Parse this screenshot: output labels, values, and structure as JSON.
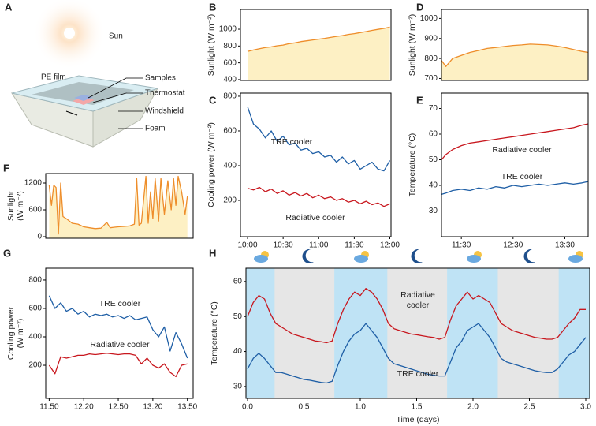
{
  "diagram": {
    "label": "A",
    "texts": [
      "Sun",
      "PE film",
      "Samples",
      "Thermostat",
      "Windshield",
      "Foam"
    ]
  },
  "chart_data": [
    {
      "type": "line",
      "label": "B",
      "ylabel": "Sunlight (W m⁻²)",
      "xlim": [
        -6,
        121
      ],
      "ylim": [
        390,
        1235
      ],
      "yticks": [
        400,
        600,
        800,
        1000
      ],
      "fill": "#fdf0c4",
      "x": [
        0,
        5,
        10,
        15,
        20,
        25,
        30,
        35,
        40,
        45,
        50,
        55,
        60,
        65,
        70,
        75,
        80,
        85,
        90,
        95,
        100,
        105,
        110,
        115,
        120
      ],
      "series": [
        {
          "color": "#ee8d2a",
          "values": [
            735,
            752,
            768,
            782,
            790,
            803,
            812,
            828,
            838,
            853,
            862,
            873,
            882,
            891,
            903,
            915,
            924,
            938,
            948,
            960,
            972,
            986,
            998,
            1010,
            1025
          ]
        }
      ]
    },
    {
      "type": "line",
      "label": "C",
      "ylabel": "Cooling power (W m⁻²)",
      "xlim": [
        -6,
        121
      ],
      "ylim": [
        -9,
        818
      ],
      "yticks": [
        200,
        400,
        600,
        800
      ],
      "xticks": [
        {
          "value": 0,
          "label": "10:00"
        },
        {
          "value": 30,
          "label": "10:30"
        },
        {
          "value": 60,
          "label": "11:00"
        },
        {
          "value": 90,
          "label": "11:30"
        },
        {
          "value": 120,
          "label": "12:00"
        }
      ],
      "x": [
        0,
        5,
        10,
        15,
        20,
        25,
        30,
        35,
        40,
        45,
        50,
        55,
        60,
        65,
        70,
        75,
        80,
        85,
        90,
        95,
        100,
        105,
        110,
        115,
        120
      ],
      "series": [
        {
          "name": "TRE cooler",
          "color": "#1f5fa6",
          "values": [
            740,
            640,
            610,
            560,
            600,
            540,
            570,
            520,
            530,
            490,
            500,
            470,
            480,
            450,
            460,
            420,
            450,
            410,
            430,
            380,
            400,
            420,
            380,
            370,
            430
          ]
        },
        {
          "name": "Radiative cooler",
          "color": "#c8171e",
          "values": [
            270,
            260,
            275,
            250,
            265,
            240,
            255,
            230,
            245,
            225,
            240,
            215,
            230,
            210,
            220,
            200,
            210,
            190,
            200,
            180,
            195,
            175,
            185,
            165,
            180
          ]
        }
      ]
    },
    {
      "type": "line",
      "label": "D",
      "ylabel": "Sunlight (W m⁻²)",
      "xlim": [
        7,
        177
      ],
      "ylim": [
        690,
        1045
      ],
      "yticks": [
        700,
        800,
        900,
        1000
      ],
      "fill": "#fdf0c4",
      "x": [
        7,
        12,
        20,
        30,
        40,
        50,
        60,
        70,
        80,
        90,
        100,
        110,
        120,
        130,
        140,
        150,
        160,
        170,
        177
      ],
      "series": [
        {
          "color": "#ee8d2a",
          "values": [
            790,
            760,
            800,
            815,
            830,
            840,
            850,
            855,
            860,
            865,
            868,
            872,
            870,
            868,
            862,
            855,
            845,
            835,
            830
          ]
        }
      ]
    },
    {
      "type": "line",
      "label": "E",
      "ylabel": "Temperature (°C)",
      "xlim": [
        7,
        177
      ],
      "ylim": [
        20,
        76
      ],
      "yticks": [
        30,
        40,
        50,
        60,
        70
      ],
      "xticks": [
        {
          "value": 30,
          "label": "11:30"
        },
        {
          "value": 90,
          "label": "12:30"
        },
        {
          "value": 150,
          "label": "13:30"
        }
      ],
      "x": [
        7,
        12,
        20,
        30,
        40,
        50,
        60,
        70,
        80,
        90,
        100,
        110,
        120,
        130,
        140,
        150,
        160,
        170,
        177
      ],
      "series": [
        {
          "name": "Radiative cooler",
          "color": "#c8171e",
          "values": [
            50,
            52,
            54,
            55.5,
            56.5,
            57,
            57.5,
            58,
            58.5,
            59,
            59.5,
            60,
            60.5,
            61,
            61.5,
            62,
            62.5,
            63.5,
            64
          ]
        },
        {
          "name": "TRE cooler",
          "color": "#1f5fa6",
          "values": [
            36.5,
            37,
            38,
            38.5,
            38,
            39,
            38.5,
            39.5,
            39,
            40,
            39.5,
            40,
            40.5,
            40,
            40.5,
            41,
            40.5,
            41,
            41.5
          ]
        }
      ]
    },
    {
      "type": "line",
      "label": "F",
      "ylabel": [
        "Sunlight",
        "(W m⁻²)"
      ],
      "xlim": [
        -3,
        125
      ],
      "ylim": [
        -35,
        1412
      ],
      "yticks": [
        0,
        600,
        1200
      ],
      "fill": "#fdf0c4",
      "x": [
        0,
        2,
        4,
        6,
        8,
        10,
        12,
        15,
        20,
        25,
        30,
        35,
        40,
        45,
        50,
        53,
        56,
        60,
        65,
        70,
        74,
        76,
        78,
        80,
        84,
        86,
        88,
        90,
        92,
        95,
        97,
        100,
        103,
        106,
        108,
        110,
        112,
        115,
        118,
        120
      ],
      "series": [
        {
          "color": "#ee8d2a",
          "values": [
            1150,
            700,
            1150,
            1100,
            60,
            1200,
            450,
            400,
            300,
            280,
            220,
            200,
            180,
            190,
            320,
            200,
            210,
            220,
            230,
            240,
            280,
            1300,
            260,
            300,
            1350,
            300,
            1000,
            400,
            1300,
            350,
            1300,
            500,
            1250,
            600,
            1300,
            700,
            1350,
            1000,
            500,
            900
          ]
        }
      ]
    },
    {
      "type": "line",
      "label": "G",
      "ylabel": [
        "Cooling power",
        "(W m⁻²)"
      ],
      "xlim": [
        -3,
        125
      ],
      "ylim": [
        -33,
        883
      ],
      "yticks": [
        200,
        400,
        600,
        800
      ],
      "xticks": [
        {
          "value": 0,
          "label": "11:50"
        },
        {
          "value": 30,
          "label": "12:20"
        },
        {
          "value": 60,
          "label": "12:50"
        },
        {
          "value": 90,
          "label": "13:20"
        },
        {
          "value": 120,
          "label": "13:50"
        }
      ],
      "x": [
        0,
        5,
        10,
        15,
        20,
        25,
        30,
        35,
        40,
        45,
        50,
        55,
        60,
        65,
        70,
        75,
        80,
        85,
        90,
        95,
        100,
        105,
        110,
        115,
        120
      ],
      "series": [
        {
          "name": "TRE cooler",
          "color": "#1f5fa6",
          "values": [
            690,
            600,
            640,
            580,
            600,
            560,
            580,
            540,
            560,
            550,
            560,
            540,
            550,
            530,
            550,
            520,
            530,
            540,
            450,
            400,
            470,
            300,
            430,
            350,
            250
          ]
        },
        {
          "name": "Radiative cooler",
          "color": "#c8171e",
          "values": [
            200,
            140,
            260,
            250,
            260,
            270,
            270,
            280,
            275,
            280,
            285,
            280,
            275,
            280,
            280,
            270,
            210,
            250,
            200,
            180,
            210,
            150,
            120,
            200,
            210
          ]
        }
      ]
    },
    {
      "type": "line",
      "label": "H",
      "ylabel": "Temperature (°C)",
      "xlabel": "Time (days)",
      "xlim": [
        -0.014,
        3.035
      ],
      "ylim": [
        26.6,
        63.8
      ],
      "yticks": [
        30,
        40,
        50,
        60
      ],
      "xticks": [
        {
          "value": 0,
          "label": "0.0"
        },
        {
          "value": 0.5,
          "label": "0.5"
        },
        {
          "value": 1,
          "label": "1.0"
        },
        {
          "value": 1.5,
          "label": "1.5"
        },
        {
          "value": 2,
          "label": "2.0"
        },
        {
          "value": 2.5,
          "label": "2.5"
        },
        {
          "value": 3,
          "label": "3.0"
        }
      ],
      "background": "#e6e6e6",
      "span_color": "#bfe3f5",
      "spans": [
        [
          -0.014,
          0.24
        ],
        [
          0.77,
          1.24
        ],
        [
          1.77,
          2.22
        ],
        [
          2.76,
          3.035
        ]
      ],
      "x": [
        0,
        0.05,
        0.1,
        0.15,
        0.2,
        0.25,
        0.3,
        0.35,
        0.4,
        0.45,
        0.5,
        0.55,
        0.6,
        0.65,
        0.7,
        0.75,
        0.8,
        0.85,
        0.9,
        0.95,
        1,
        1.05,
        1.1,
        1.15,
        1.2,
        1.25,
        1.3,
        1.35,
        1.4,
        1.45,
        1.5,
        1.55,
        1.6,
        1.65,
        1.7,
        1.75,
        1.8,
        1.85,
        1.9,
        1.95,
        2,
        2.05,
        2.1,
        2.15,
        2.2,
        2.25,
        2.3,
        2.35,
        2.4,
        2.45,
        2.5,
        2.55,
        2.6,
        2.65,
        2.7,
        2.75,
        2.8,
        2.85,
        2.9,
        2.95,
        3
      ],
      "series": [
        {
          "name": "Radiative cooler",
          "color": "#c8171e",
          "values": [
            50,
            54,
            56,
            55,
            51,
            48,
            47,
            46,
            45,
            44.5,
            44,
            43.5,
            43,
            42.8,
            42.5,
            43,
            48,
            52,
            55,
            57,
            56,
            58,
            57,
            55,
            52,
            48,
            46.5,
            46,
            45.5,
            45,
            44.8,
            44.5,
            44.2,
            44,
            43.5,
            44,
            49,
            53,
            55,
            57,
            55,
            56,
            55,
            54,
            51,
            48,
            47,
            46,
            45.5,
            45,
            44.5,
            44,
            43.8,
            43.5,
            43.5,
            44,
            46,
            48,
            49.5,
            52,
            52
          ]
        },
        {
          "name": "TRE cooler",
          "color": "#1f5fa6",
          "values": [
            35,
            38,
            39.5,
            38,
            36,
            34,
            34,
            33.5,
            33,
            32.5,
            32,
            31.8,
            31.5,
            31.2,
            31,
            31.5,
            36,
            40,
            43,
            45,
            46,
            48,
            46,
            44,
            41,
            38,
            36.5,
            36,
            35.5,
            35,
            34.5,
            34,
            33.5,
            33.2,
            33,
            33,
            37,
            41,
            43,
            46,
            47,
            48,
            46,
            44,
            41,
            38,
            37,
            36.5,
            36,
            35.5,
            35,
            34.5,
            34.2,
            34,
            34,
            35,
            37,
            39,
            40,
            42,
            44
          ]
        }
      ]
    }
  ]
}
